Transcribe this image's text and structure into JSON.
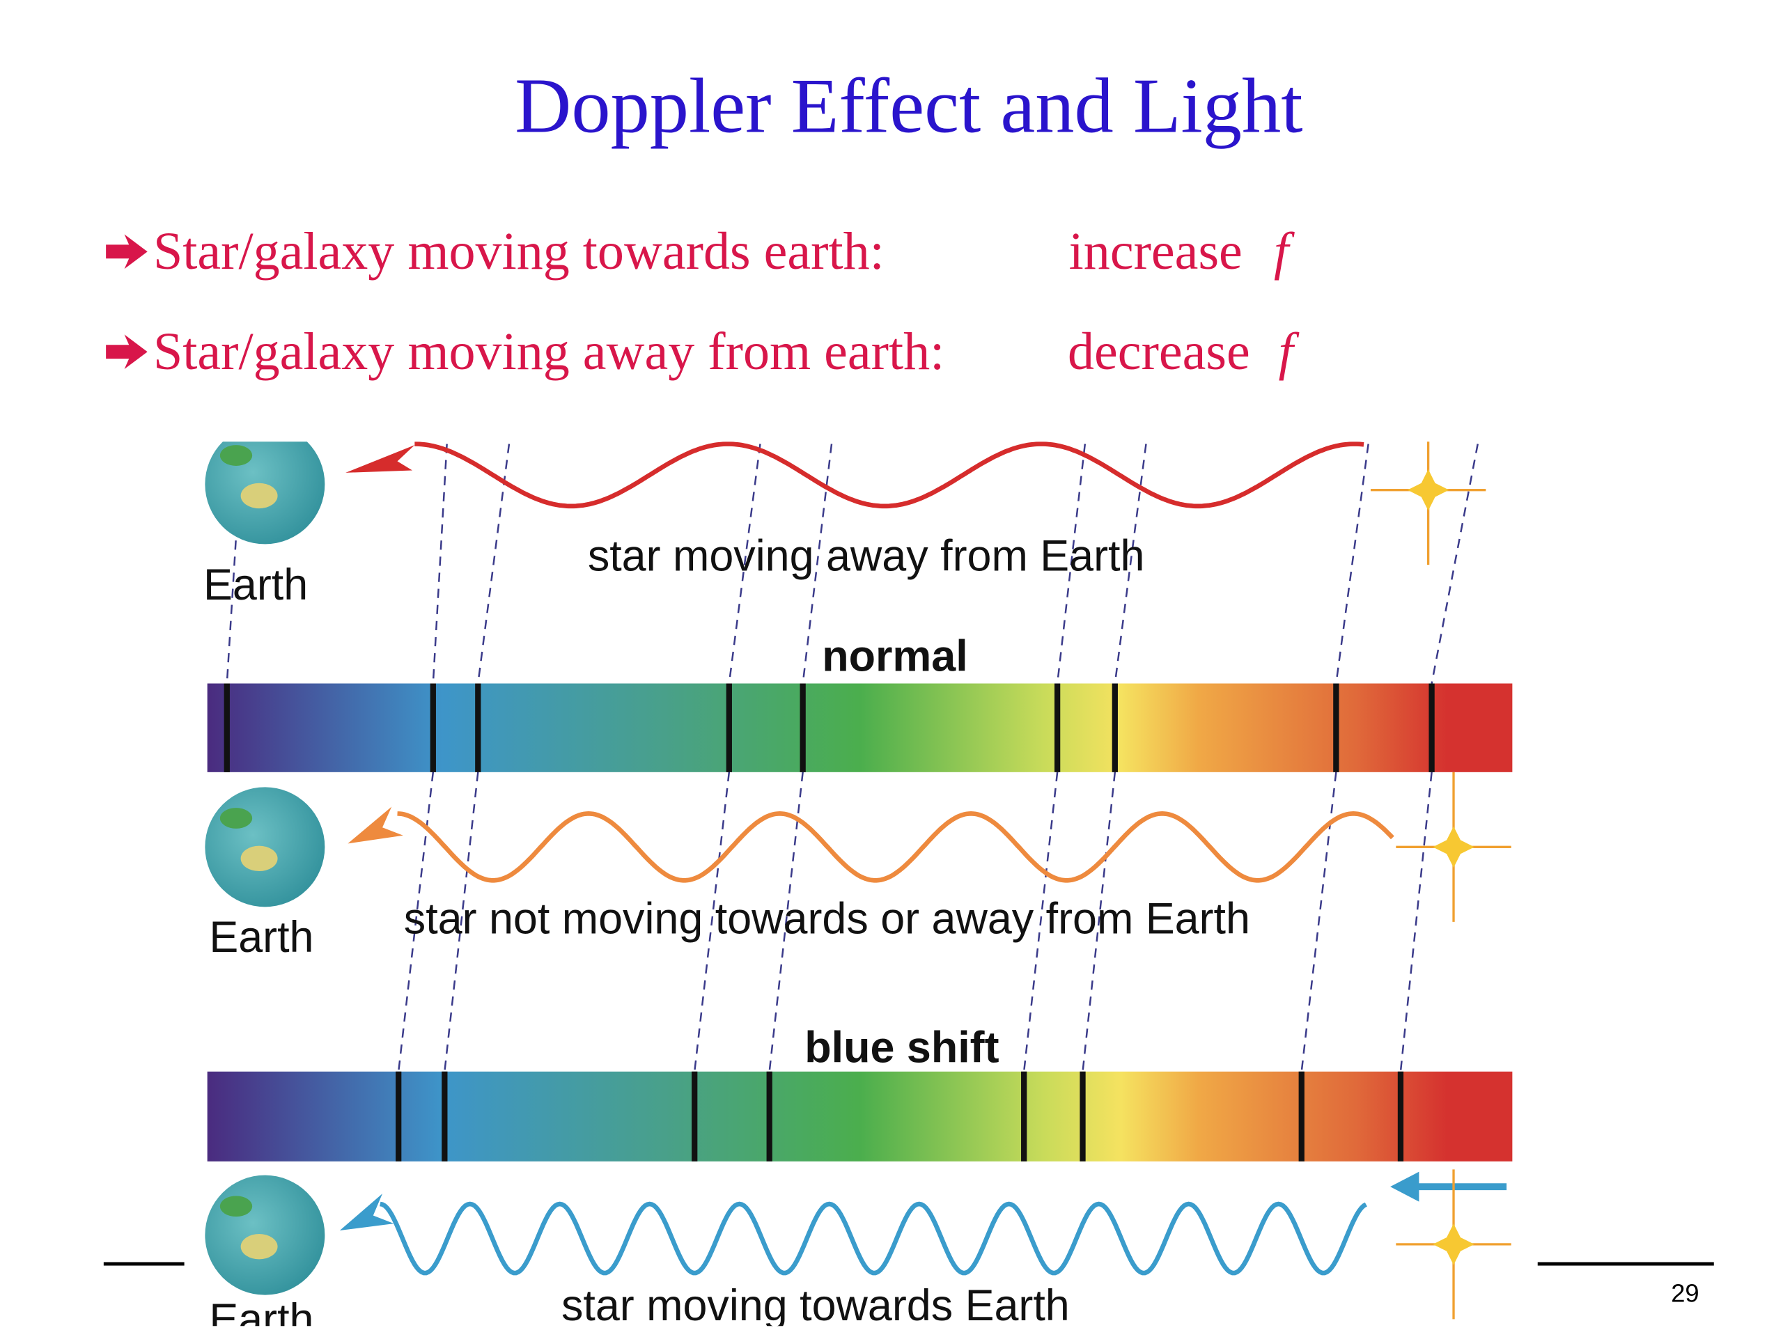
{
  "header": {
    "title": "Doppler Effect and Light"
  },
  "bullets": [
    {
      "text": "Star/galaxy moving towards earth:",
      "effect": "increase",
      "symbol": "f"
    },
    {
      "text": "Star/galaxy moving away from earth:",
      "effect": "decrease",
      "symbol": "f"
    }
  ],
  "diagram": {
    "rows": [
      {
        "earth_label": "Earth",
        "caption": "star moving away from Earth"
      },
      {
        "earth_label": "Earth",
        "caption": "star not moving towards or away from Earth"
      },
      {
        "earth_label": "Earth",
        "caption": "star moving towards Earth"
      }
    ],
    "spectra": [
      {
        "label": "normal"
      },
      {
        "label": "blue shift"
      }
    ]
  },
  "page_number": "29"
}
